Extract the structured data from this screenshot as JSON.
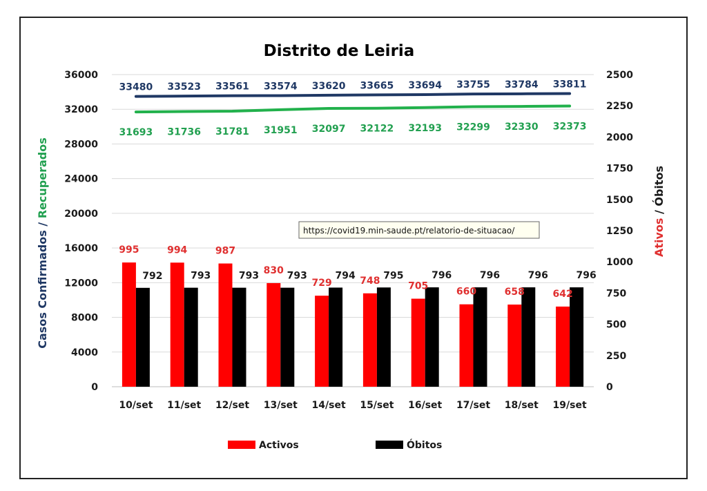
{
  "chart_data": {
    "type": "bar",
    "title": "Distrito de Leiria",
    "categories": [
      "10/set",
      "11/set",
      "12/set",
      "13/set",
      "14/set",
      "15/set",
      "16/set",
      "17/set",
      "18/set",
      "19/set"
    ],
    "left_axis": {
      "title_parts": [
        "Casos Confirmados",
        " / ",
        "Recuperados"
      ],
      "ylim": [
        0,
        36000
      ],
      "ticks": [
        "0",
        "4000",
        "8000",
        "12000",
        "16000",
        "20000",
        "24000",
        "28000",
        "32000",
        "36000"
      ]
    },
    "right_axis": {
      "title_parts": [
        "Ativos",
        " / ",
        "Óbitos"
      ],
      "ylim": [
        0,
        2500
      ],
      "ticks": [
        "0",
        "250",
        "500",
        "750",
        "1000",
        "1250",
        "1500",
        "1750",
        "2000",
        "2250",
        "2500"
      ]
    },
    "series": [
      {
        "name": "Activos",
        "kind": "bar",
        "axis": "right",
        "color": "#ff0000",
        "values": [
          995,
          994,
          987,
          830,
          729,
          748,
          705,
          660,
          658,
          642
        ]
      },
      {
        "name": "Óbitos",
        "kind": "bar",
        "axis": "right",
        "color": "#000000",
        "values": [
          792,
          793,
          793,
          793,
          794,
          795,
          796,
          796,
          796,
          796
        ]
      },
      {
        "kind": "line",
        "axis": "left",
        "color": "#1f3864",
        "values": [
          33480,
          33523,
          33561,
          33574,
          33620,
          33665,
          33694,
          33755,
          33784,
          33811
        ]
      },
      {
        "kind": "line",
        "axis": "left",
        "color": "#22b14c",
        "values": [
          31693,
          31736,
          31781,
          31951,
          32097,
          32122,
          32193,
          32299,
          32330,
          32373
        ]
      }
    ],
    "legend": [
      "Activos",
      "Óbitos"
    ],
    "legend_position": "bottom",
    "grid": "horizontal",
    "annotation": "https://covid19.min-saude.pt/relatorio-de-situacao/",
    "colors": {
      "confirmados": "#1f3864",
      "recuperados": "#22b14c",
      "ativos": "#ff0000",
      "obitos": "#000000",
      "ativos_label": "#e03030",
      "recuperados_label": "#22a050",
      "confirmados_label": "#1f3864"
    }
  }
}
